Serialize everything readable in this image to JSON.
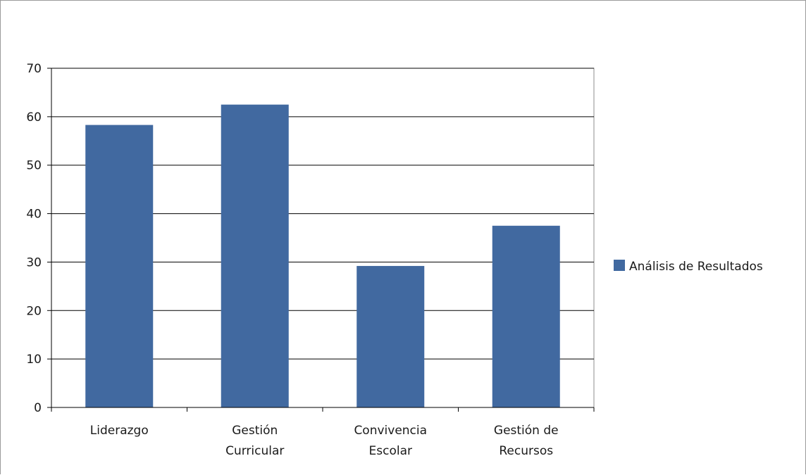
{
  "chart_data": {
    "type": "bar",
    "categories": [
      [
        "Liderazgo"
      ],
      [
        "Gestión",
        "Curricular"
      ],
      [
        "Convivencia",
        "Escolar"
      ],
      [
        "Gestión de",
        "Recursos"
      ]
    ],
    "series": [
      {
        "name": "Análisis de Resultados",
        "color": "#4169A0",
        "values": [
          58.3,
          62.5,
          29.2,
          37.5
        ]
      }
    ],
    "title": "",
    "xlabel": "",
    "ylabel": "",
    "ylim": [
      0,
      70
    ],
    "yticks": [
      0,
      10,
      20,
      30,
      40,
      50,
      60,
      70
    ],
    "grid": true,
    "legend": "right"
  }
}
